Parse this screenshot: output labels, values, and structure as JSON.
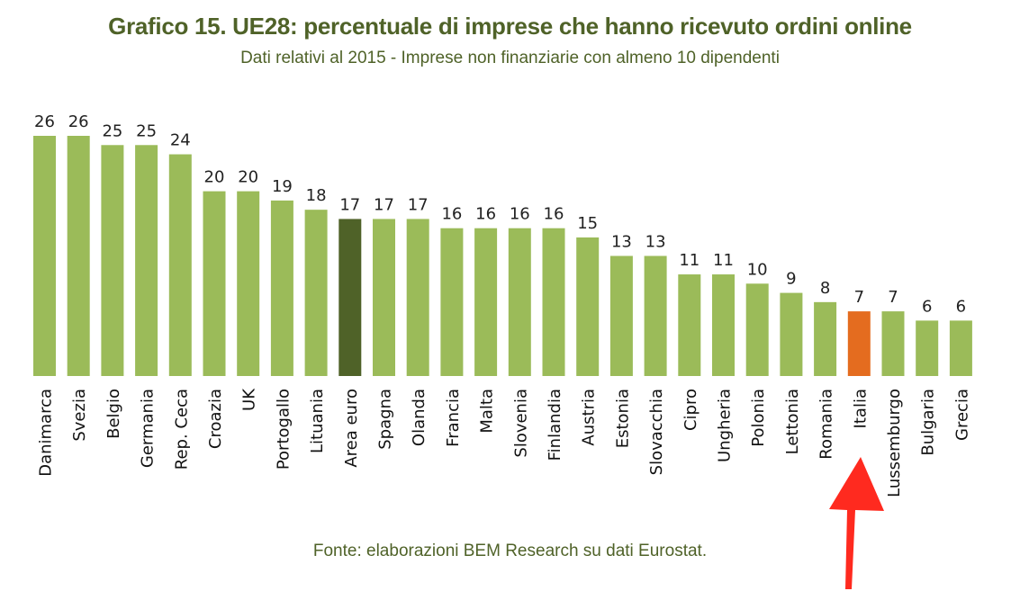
{
  "title": "Grafico 15. UE28: percentuale di imprese che hanno ricevuto ordini online",
  "subtitle": "Dati relativi al 2015 - Imprese non finanziarie con almeno 10 dipendenti",
  "source": "Fonte: elaborazioni BEM Research su dati Eurostat.",
  "colors": {
    "bar": "#9BBB59",
    "euro_area": "#4F6228",
    "italy": "#E46C1F",
    "arrow": "#FF2A1F",
    "title": "#4F6228"
  },
  "annotation": {
    "type": "arrow",
    "points_to": "Italia"
  },
  "chart_data": {
    "type": "bar",
    "title": "Grafico 15. UE28: percentuale di imprese che hanno ricevuto ordini online",
    "subtitle": "Dati relativi al 2015 - Imprese non finanziarie con almeno 10 dipendenti",
    "xlabel": "",
    "ylabel": "",
    "ylim": [
      0,
      26
    ],
    "grid": false,
    "data_labels": true,
    "categories": [
      "Danimarca",
      "Svezia",
      "Belgio",
      "Germania",
      "Rep. Ceca",
      "Croazia",
      "UK",
      "Portogallo",
      "Lituania",
      "Area euro",
      "Spagna",
      "Olanda",
      "Francia",
      "Malta",
      "Slovenia",
      "Finlandia",
      "Austria",
      "Estonia",
      "Slovacchia",
      "Cipro",
      "Ungheria",
      "Polonia",
      "Lettonia",
      "Romania",
      "Italia",
      "Lussemburgo",
      "Bulgaria",
      "Grecia"
    ],
    "values": [
      26,
      26,
      25,
      25,
      24,
      20,
      20,
      19,
      18,
      17,
      17,
      17,
      16,
      16,
      16,
      16,
      15,
      13,
      13,
      11,
      11,
      10,
      9,
      8,
      7,
      7,
      6,
      6
    ],
    "highlight": {
      "Area euro": "#4F6228",
      "Italia": "#E46C1F"
    }
  }
}
